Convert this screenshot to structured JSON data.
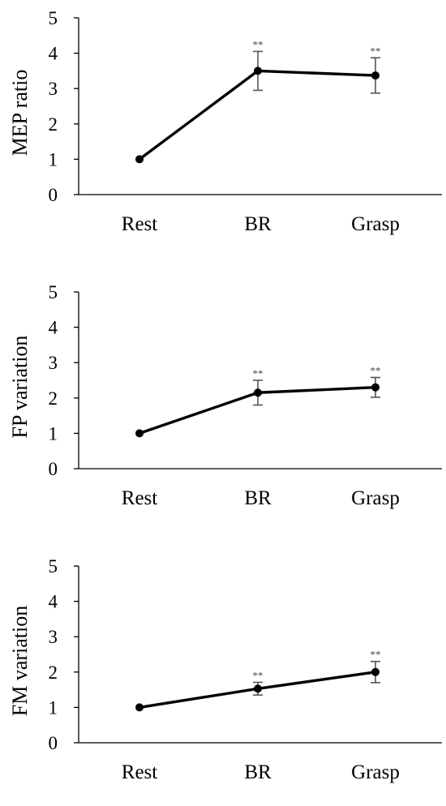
{
  "chart_data": [
    {
      "type": "line",
      "categories": [
        "Rest",
        "BR",
        "Grasp"
      ],
      "values": [
        1,
        3.5,
        3.37
      ],
      "errors": [
        0,
        0.55,
        0.5
      ],
      "annotations": [
        "",
        "**",
        "**"
      ],
      "ylabel": "MEP ratio",
      "yticks": [
        "0",
        "1",
        "2",
        "3",
        "4",
        "5"
      ],
      "ylim": [
        0,
        5
      ],
      "grid": false
    },
    {
      "type": "line",
      "categories": [
        "Rest",
        "BR",
        "Grasp"
      ],
      "values": [
        1,
        2.15,
        2.3
      ],
      "errors": [
        0,
        0.35,
        0.28
      ],
      "annotations": [
        "",
        "**",
        "**"
      ],
      "ylabel": "FP variation",
      "yticks": [
        "0",
        "1",
        "2",
        "3",
        "4",
        "5"
      ],
      "ylim": [
        0,
        5
      ],
      "grid": false
    },
    {
      "type": "line",
      "categories": [
        "Rest",
        "BR",
        "Grasp"
      ],
      "values": [
        1,
        1.53,
        2.0
      ],
      "errors": [
        0,
        0.18,
        0.3
      ],
      "annotations": [
        "",
        "**",
        "**"
      ],
      "ylabel": "FM variation",
      "yticks": [
        "0",
        "1",
        "2",
        "3",
        "4",
        "5"
      ],
      "ylim": [
        0,
        5
      ],
      "grid": false
    }
  ]
}
